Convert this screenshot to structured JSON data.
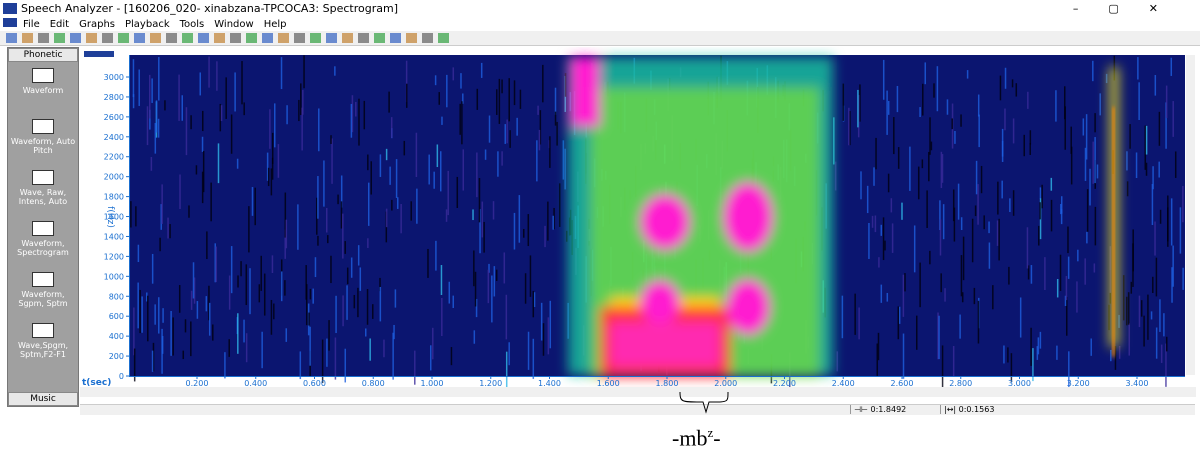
{
  "window": {
    "title": "Speech Analyzer - [160206_020- xinabzana-TPCOCA3: Spectrogram]"
  },
  "menu": [
    "File",
    "Edit",
    "Graphs",
    "Playback",
    "Tools",
    "Window",
    "Help"
  ],
  "sidebar": {
    "header": "Phonetic",
    "items": [
      "Waveform",
      "Waveform, Auto Pitch",
      "Wave, Raw, Intens, Auto",
      "Waveform, Spectrogram",
      "Waveform, Sgpm, Sptm",
      "Wave,Spgm, Sptm,F2-F1"
    ],
    "footer": "Music"
  },
  "plot": {
    "y_label": "f(Hz)",
    "y_ticks": [
      "3000",
      "2800",
      "2600",
      "2400",
      "2200",
      "2000",
      "1800",
      "1600",
      "1400",
      "1200",
      "1000",
      "800",
      "600",
      "400",
      "200",
      "0"
    ],
    "x_label": "t(sec)",
    "x_ticks": [
      "0.200",
      "0.400",
      "0.600",
      "0.800",
      "1.000",
      "1.200",
      "1.400",
      "1.600",
      "1.800",
      "2.000",
      "2.200",
      "2.400",
      "2.600",
      "2.800",
      "3.000",
      "3.200",
      "3.400"
    ]
  },
  "status": {
    "position": "0:1.8492",
    "length": "0:0.1563"
  },
  "annotation": {
    "prefix": "-mb",
    "superscript": "z",
    "suffix": "-"
  }
}
